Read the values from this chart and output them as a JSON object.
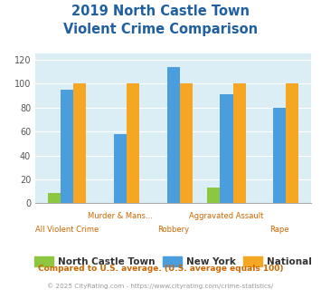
{
  "title_line1": "2019 North Castle Town",
  "title_line2": "Violent Crime Comparison",
  "categories": [
    "All Violent Crime",
    "Murder & Mans...",
    "Robbery",
    "Aggravated Assault",
    "Rape"
  ],
  "north_castle": [
    9,
    0,
    0,
    13,
    0
  ],
  "new_york": [
    95,
    58,
    114,
    91,
    80
  ],
  "national": [
    100,
    100,
    100,
    100,
    100
  ],
  "colors": {
    "north_castle": "#8dc63f",
    "new_york": "#4a9edd",
    "national": "#f5a623"
  },
  "ylim": [
    0,
    125
  ],
  "yticks": [
    0,
    20,
    40,
    60,
    80,
    100,
    120
  ],
  "bg_color": "#dceef5",
  "title_color": "#2060a0",
  "xlabel_color_upper": "#b07030",
  "xlabel_color_lower": "#cc6600",
  "legend_labels": [
    "North Castle Town",
    "New York",
    "National"
  ],
  "footnote1": "Compared to U.S. average. (U.S. average equals 100)",
  "footnote2": "© 2025 CityRating.com - https://www.cityrating.com/crime-statistics/",
  "footnote1_color": "#cc6600",
  "footnote2_color": "#999999"
}
